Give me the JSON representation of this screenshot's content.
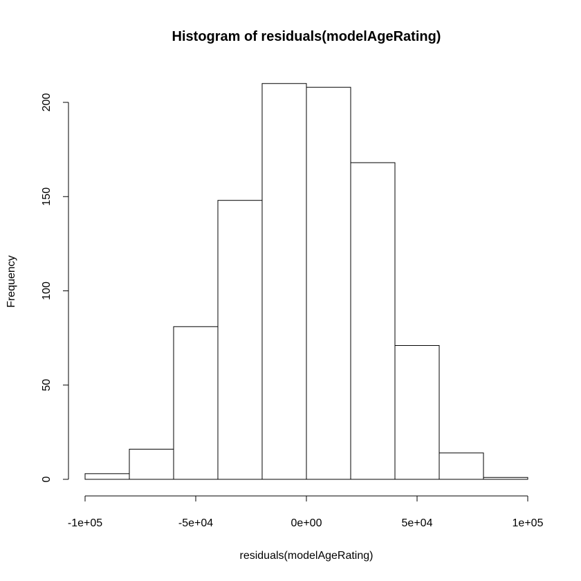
{
  "chart_data": {
    "type": "bar",
    "title": "Histogram of residuals(modelAgeRating)",
    "xlabel": "residuals(modelAgeRating)",
    "ylabel": "Frequency",
    "bins": [
      {
        "from": -100000,
        "to": -80000,
        "count": 3
      },
      {
        "from": -80000,
        "to": -60000,
        "count": 16
      },
      {
        "from": -60000,
        "to": -40000,
        "count": 81
      },
      {
        "from": -40000,
        "to": -20000,
        "count": 148
      },
      {
        "from": -20000,
        "to": 0,
        "count": 210
      },
      {
        "from": 0,
        "to": 20000,
        "count": 208
      },
      {
        "from": 20000,
        "to": 40000,
        "count": 168
      },
      {
        "from": 40000,
        "to": 60000,
        "count": 71
      },
      {
        "from": 60000,
        "to": 80000,
        "count": 14
      },
      {
        "from": 80000,
        "to": 100000,
        "count": 1
      }
    ],
    "xlim": [
      -100000,
      100000
    ],
    "ylim": [
      0,
      200
    ],
    "xticks": [
      {
        "value": -100000,
        "label": "-1e+05"
      },
      {
        "value": -50000,
        "label": "-5e+04"
      },
      {
        "value": 0,
        "label": "0e+00"
      },
      {
        "value": 50000,
        "label": "5e+04"
      },
      {
        "value": 100000,
        "label": "1e+05"
      }
    ],
    "yticks": [
      {
        "value": 0,
        "label": "0"
      },
      {
        "value": 50,
        "label": "50"
      },
      {
        "value": 100,
        "label": "100"
      },
      {
        "value": 150,
        "label": "150"
      },
      {
        "value": 200,
        "label": "200"
      }
    ],
    "colors": {
      "fill": "#ffffff",
      "stroke": "#000000"
    }
  }
}
